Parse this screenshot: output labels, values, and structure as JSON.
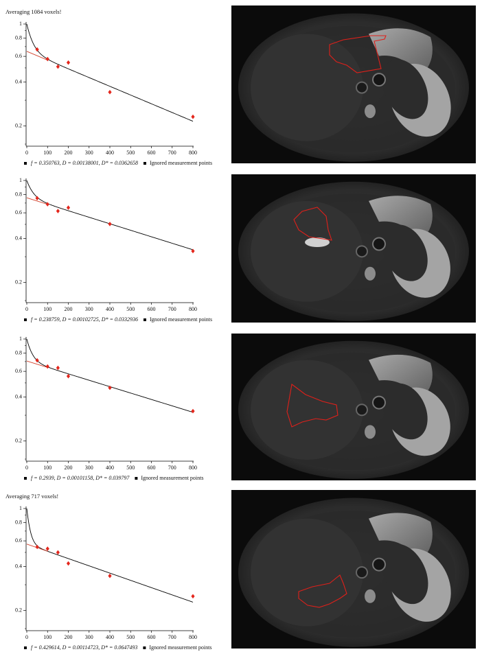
{
  "chart_data": [
    {
      "type": "scatter",
      "title": "Averaging 1084 voxels!",
      "log_y": true,
      "x": [
        50,
        100,
        150,
        200,
        400,
        800
      ],
      "xlim": [
        0,
        800
      ],
      "xticks": [
        0,
        100,
        200,
        300,
        400,
        500,
        600,
        700,
        800
      ],
      "ylim": [
        0.15,
        1
      ],
      "yticks": [
        0.2,
        0.4,
        0.6,
        0.8,
        1
      ],
      "yminorticks": [
        0.15,
        0.3,
        0.5,
        0.7,
        0.9
      ],
      "series": [
        {
          "name": "f = 0.350763, D = 0.00138001, D* = 0.0362658",
          "color": "#000000",
          "fit": {
            "f": 0.350763,
            "D": 0.00138001,
            "D_star": 0.0362658
          },
          "diffusion_line_color": "#d2412b"
        },
        {
          "name": "Ignored measurement points",
          "color": "#000000"
        },
        {
          "color": "#e4261c",
          "values": [
            0.669,
            0.575,
            0.51,
            0.544,
            0.341,
            0.231
          ]
        }
      ]
    },
    {
      "type": "scatter",
      "log_y": true,
      "x": [
        50,
        100,
        150,
        200,
        400,
        800
      ],
      "xlim": [
        0,
        800
      ],
      "xticks": [
        0,
        100,
        200,
        300,
        400,
        500,
        600,
        700,
        800
      ],
      "ylim": [
        0.15,
        1
      ],
      "yticks": [
        0.2,
        0.4,
        0.6,
        0.8,
        1
      ],
      "yminorticks": [
        0.15,
        0.3,
        0.5,
        0.7,
        0.9
      ],
      "series": [
        {
          "name": "f = 0.238759, D = 0.00102725, D* = 0.0332936",
          "color": "#000000",
          "fit": {
            "f": 0.238759,
            "D": 0.00102725,
            "D_star": 0.0332936
          },
          "diffusion_line_color": "#d2412b"
        },
        {
          "name": "Ignored measurement points",
          "color": "#000000"
        },
        {
          "color": "#e4261c",
          "values": [
            0.756,
            0.687,
            0.617,
            0.651,
            0.503,
            0.328
          ]
        }
      ]
    },
    {
      "type": "scatter",
      "log_y": true,
      "x": [
        50,
        100,
        150,
        200,
        400,
        800
      ],
      "xlim": [
        0,
        800
      ],
      "xticks": [
        0,
        100,
        200,
        300,
        400,
        500,
        600,
        700,
        800
      ],
      "ylim": [
        0.15,
        1
      ],
      "yticks": [
        0.2,
        0.4,
        0.6,
        0.8,
        1
      ],
      "yminorticks": [
        0.15,
        0.3,
        0.5,
        0.7,
        0.9
      ],
      "series": [
        {
          "name": "f = 0.2939, D = 0.00101158, D* = 0.039797",
          "color": "#000000",
          "fit": {
            "f": 0.2939,
            "D": 0.00101158,
            "D_star": 0.039797
          },
          "diffusion_line_color": "#d2412b"
        },
        {
          "name": "Ignored measurement points",
          "color": "#000000"
        },
        {
          "color": "#e4261c",
          "values": [
            0.714,
            0.648,
            0.634,
            0.556,
            0.463,
            0.32
          ]
        }
      ]
    },
    {
      "type": "scatter",
      "title": "Averaging 717 voxels!",
      "log_y": true,
      "x": [
        50,
        100,
        150,
        200,
        400,
        800
      ],
      "xlim": [
        0,
        800
      ],
      "xticks": [
        0,
        100,
        200,
        300,
        400,
        500,
        600,
        700,
        800
      ],
      "ylim": [
        0.15,
        1
      ],
      "yticks": [
        0.2,
        0.4,
        0.6,
        0.8,
        1
      ],
      "yminorticks": [
        0.15,
        0.3,
        0.5,
        0.7,
        0.9
      ],
      "series": [
        {
          "name": "f = 0.429614, D = 0.00114723, D* = 0.0647493",
          "color": "#000000",
          "fit": {
            "f": 0.429614,
            "D": 0.00114723,
            "D_star": 0.0647493
          },
          "diffusion_line_color": "#d2412b"
        },
        {
          "name": "Ignored measurement points",
          "color": "#000000"
        },
        {
          "color": "#e4261c",
          "values": [
            0.545,
            0.53,
            0.5,
            0.42,
            0.345,
            0.25
          ]
        }
      ]
    }
  ]
}
